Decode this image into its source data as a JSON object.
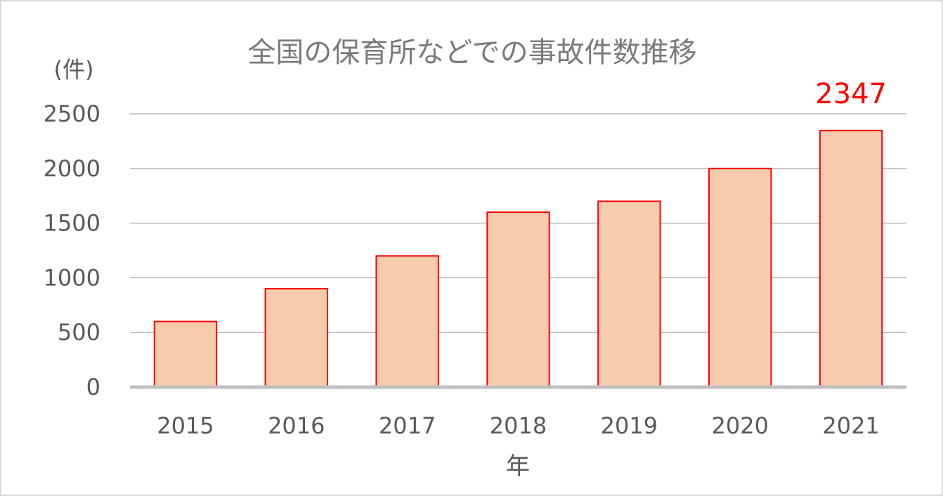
{
  "chart_data": {
    "type": "bar",
    "title": "全国の保育所などでの事故件数推移",
    "ylabel": "(件)",
    "xlabel": "年",
    "categories": [
      "2015",
      "2016",
      "2017",
      "2018",
      "2019",
      "2020",
      "2021"
    ],
    "values": [
      600,
      900,
      1200,
      1600,
      1700,
      2000,
      2347
    ],
    "ylim": [
      0,
      2500
    ],
    "yticks": [
      "0",
      "500",
      "1000",
      "1500",
      "2000",
      "2500"
    ],
    "grid": true,
    "legend": "none",
    "annotations": [
      {
        "category": "2021",
        "text": "2347"
      }
    ],
    "colors": {
      "bar_fill": "#f8cbad",
      "bar_stroke": "#ff0000",
      "annotation": "#ff0000",
      "gridline": "#a6a6a6",
      "baseline": "#bfbfbf"
    }
  }
}
